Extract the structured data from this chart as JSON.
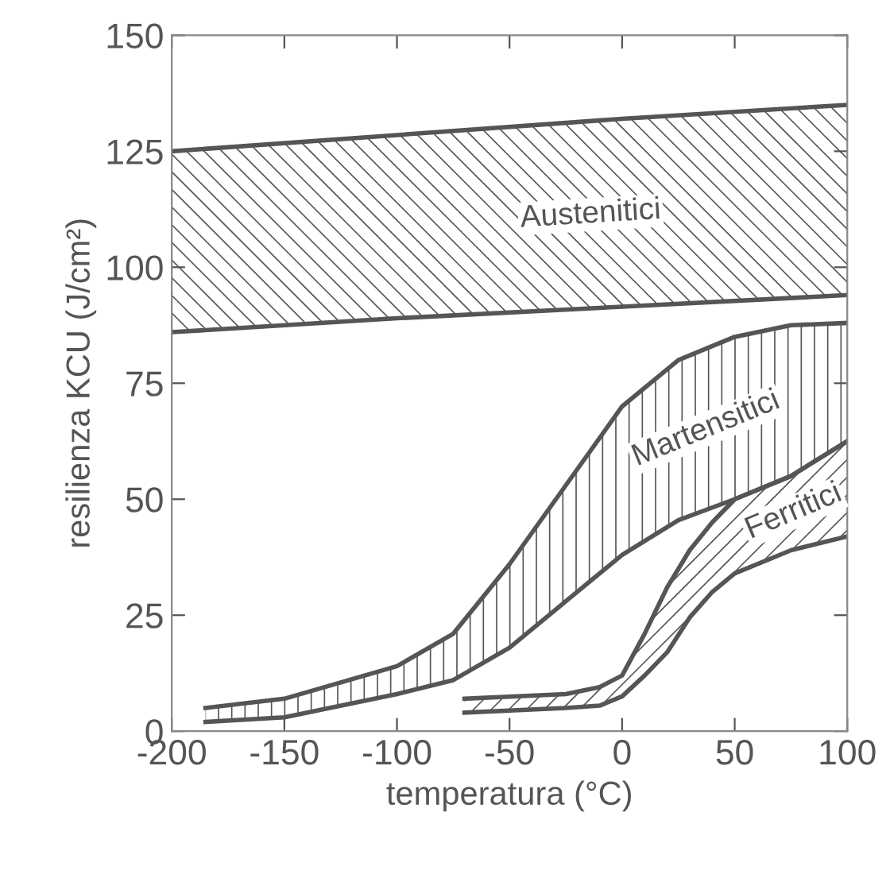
{
  "chart_data": {
    "type": "line",
    "xlabel": "temperatura (°C)",
    "ylabel": "resilienza KCU (J/cm²)",
    "xlim": [
      -200,
      100
    ],
    "xticks": [
      -200,
      -150,
      -100,
      -50,
      0,
      50,
      100
    ],
    "ylim": [
      0,
      150
    ],
    "yticks": [
      0,
      25,
      50,
      75,
      100,
      125,
      150
    ],
    "grid": false,
    "marker": "none",
    "line_style": "solid",
    "series": [
      {
        "name": "Austenitici",
        "color": "#555555",
        "x": [
          -200,
          -100,
          0,
          100
        ],
        "values": [
          125,
          128.5,
          132,
          135
        ],
        "lower": [
          86,
          89,
          91.5,
          94
        ],
        "upper": [
          125,
          128.5,
          132,
          135
        ]
      },
      {
        "color": "#555555",
        "x": [
          -200,
          -100,
          0,
          100
        ],
        "values": [
          86,
          89,
          91.5,
          94
        ]
      },
      {
        "name": "Martensitici",
        "color": "#555555",
        "x": [
          -185,
          -150,
          -100,
          -75,
          -50,
          -25,
          0,
          25,
          50,
          75,
          100
        ],
        "values": [
          5,
          7,
          14,
          21,
          36,
          53,
          70,
          80,
          85,
          87.5,
          88
        ],
        "lower": [
          2,
          3,
          8,
          11,
          18,
          28,
          38,
          45.5,
          50,
          55,
          62.5
        ],
        "upper": [
          5,
          7,
          14,
          21,
          36,
          53,
          70,
          80,
          85,
          87.5,
          88
        ]
      },
      {
        "color": "#555555",
        "x": [
          -185,
          -150,
          -100,
          -75,
          -50,
          -25,
          0,
          25,
          50,
          75,
          100
        ],
        "values": [
          2,
          3,
          8,
          11,
          18,
          28,
          38,
          45.5,
          50,
          55,
          62.5
        ]
      },
      {
        "name": "Ferritici",
        "color": "#555555",
        "x": [
          -70,
          -25,
          -10,
          0,
          10,
          20,
          30,
          40,
          50,
          75,
          100
        ],
        "values": [
          7,
          8,
          9.5,
          12,
          21,
          31,
          39,
          45,
          50,
          55,
          62.5
        ],
        "lower": [
          4,
          5,
          5.5,
          7.5,
          12,
          17,
          24.5,
          30,
          34,
          39,
          42
        ],
        "upper": [
          7,
          8,
          9.5,
          12,
          21,
          31,
          39,
          45,
          50,
          55,
          62.5
        ]
      },
      {
        "color": "#555555",
        "x": [
          -70,
          -25,
          -10,
          0,
          10,
          20,
          30,
          40,
          50,
          75,
          100
        ],
        "values": [
          4,
          5,
          5.5,
          7.5,
          12,
          17,
          24.5,
          30,
          34,
          39,
          42
        ]
      }
    ]
  }
}
